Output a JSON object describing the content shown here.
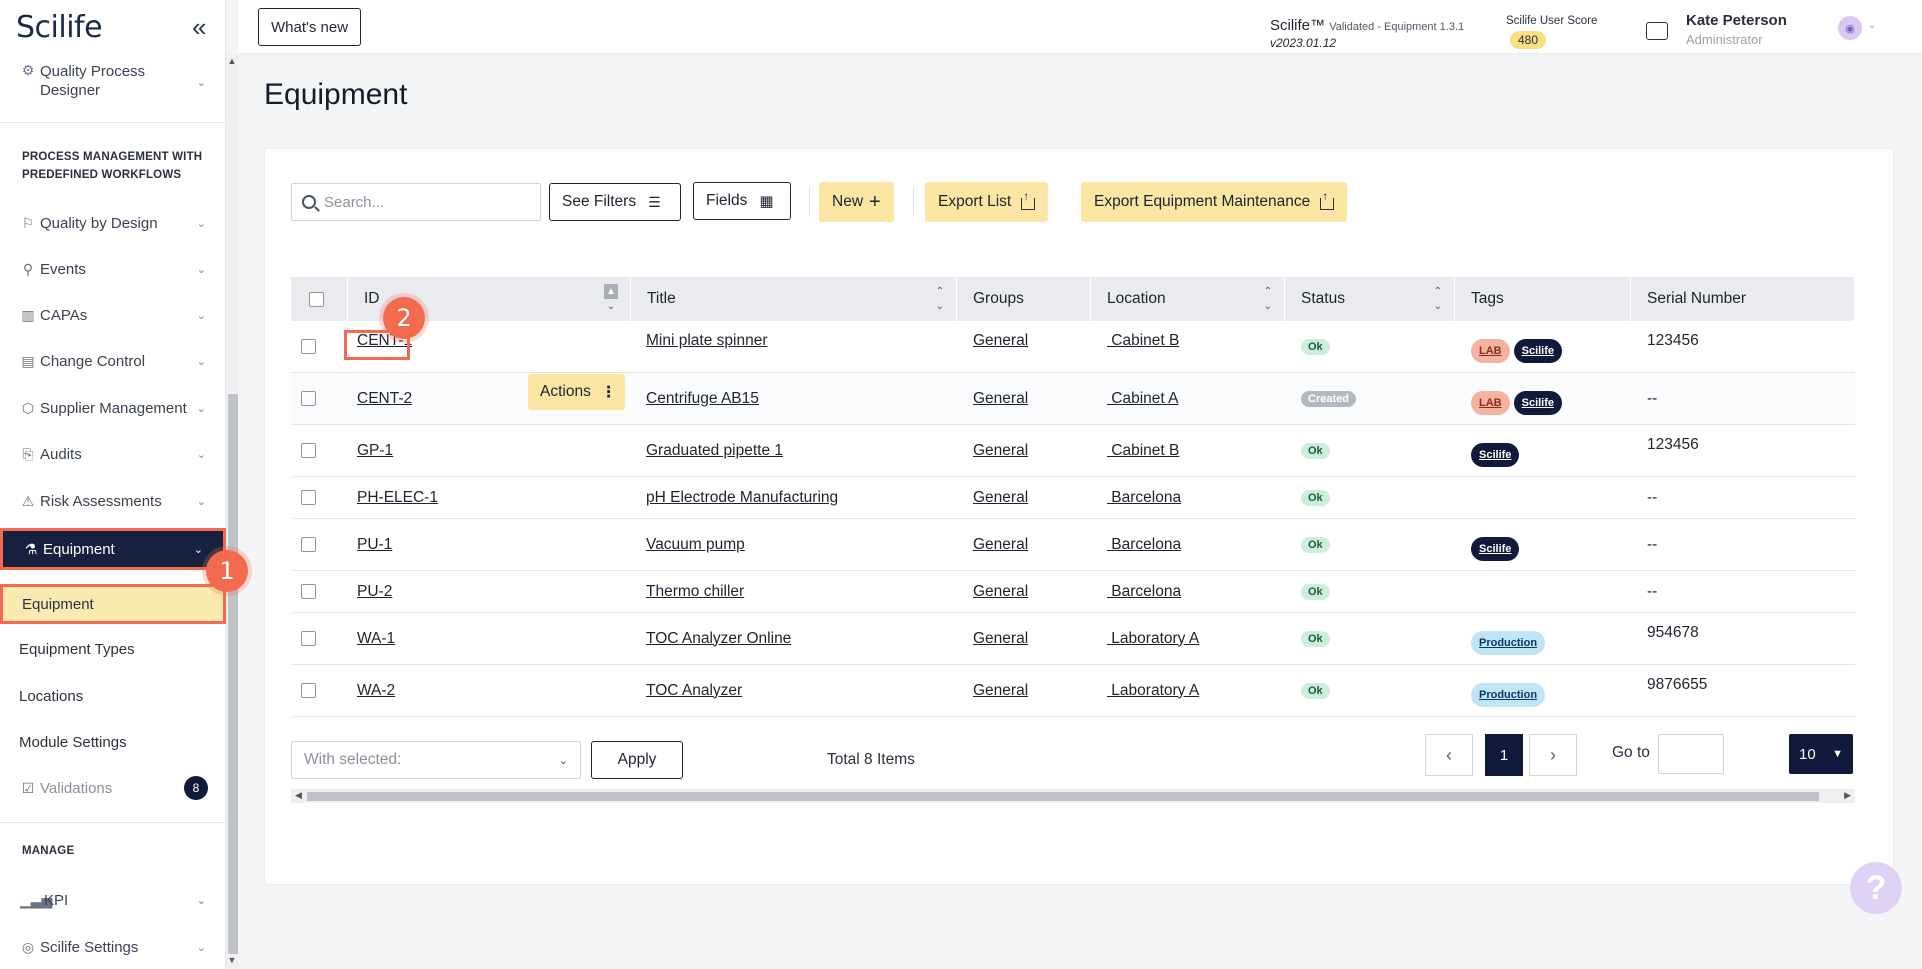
{
  "sidebar": {
    "logo": "Scilife",
    "items": [
      {
        "label": "Quality Process Designer"
      },
      {
        "label": "Quality by Design"
      },
      {
        "label": "Events"
      },
      {
        "label": "CAPAs"
      },
      {
        "label": "Change Control"
      },
      {
        "label": "Supplier Management"
      },
      {
        "label": "Audits"
      },
      {
        "label": "Risk Assessments"
      },
      {
        "label": "Equipment"
      },
      {
        "label": "Validations",
        "badge": "8"
      },
      {
        "label": "KPI"
      },
      {
        "label": "Scilife Settings"
      }
    ],
    "sections": {
      "process": "PROCESS MANAGEMENT WITH PREDEFINED WORKFLOWS",
      "manage": "MANAGE"
    },
    "equipment_sub": [
      "Equipment",
      "Equipment Types",
      "Locations",
      "Module Settings"
    ]
  },
  "steps": {
    "one": "1",
    "two": "2"
  },
  "topbar": {
    "whats_new": "What's new",
    "product": "Scilife™",
    "validated": "Validated - Equipment 1.3.1",
    "version": "v2023.01.12",
    "score_label": "Scilife User Score",
    "score": "480",
    "user_name": "Kate Peterson",
    "user_role": "Administrator"
  },
  "page": {
    "title": "Equipment"
  },
  "toolbar": {
    "search_placeholder": "Search...",
    "filters": "See Filters",
    "fields": "Fields",
    "new": "New",
    "export_list": "Export List",
    "export_maintenance": "Export Equipment Maintenance"
  },
  "table": {
    "columns": [
      "ID",
      "Title",
      "Groups",
      "Location",
      "Status",
      "Tags",
      "Serial Number"
    ],
    "actions_label": "Actions",
    "rows": [
      {
        "id": "CENT-1",
        "title": "Mini plate spinner",
        "group": "General",
        "location": " Cabinet B",
        "status": "Ok",
        "tags": [
          "LAB",
          "Scilife"
        ],
        "serial": "123456"
      },
      {
        "id": "CENT-2",
        "title": "Centrifuge AB15",
        "group": "General",
        "location": " Cabinet A",
        "status": "Created",
        "tags": [
          "LAB",
          "Scilife"
        ],
        "serial": "--"
      },
      {
        "id": "GP-1",
        "title": "Graduated pipette 1",
        "group": "General",
        "location": " Cabinet B",
        "status": "Ok",
        "tags": [
          "Scilife"
        ],
        "serial": "123456"
      },
      {
        "id": "PH-ELEC-1",
        "title": "pH Electrode Manufacturing",
        "group": "General",
        "location": " Barcelona",
        "status": "Ok",
        "tags": [],
        "serial": "--"
      },
      {
        "id": "PU-1",
        "title": "Vacuum pump",
        "group": "General",
        "location": " Barcelona",
        "status": "Ok",
        "tags": [
          "Scilife"
        ],
        "serial": "--"
      },
      {
        "id": "PU-2",
        "title": "Thermo chiller",
        "group": "General",
        "location": " Barcelona",
        "status": "Ok",
        "tags": [],
        "serial": "--"
      },
      {
        "id": "WA-1",
        "title": "TOC Analyzer Online",
        "group": "General",
        "location": " Laboratory A",
        "status": "Ok",
        "tags": [
          "Production"
        ],
        "serial": "954678"
      },
      {
        "id": "WA-2",
        "title": "TOC Analyzer",
        "group": "General",
        "location": " Laboratory A",
        "status": "Ok",
        "tags": [
          "Production"
        ],
        "serial": "9876655"
      }
    ]
  },
  "footer": {
    "with_selected": "With selected:",
    "apply": "Apply",
    "total": "Total 8 Items",
    "page": "1",
    "goto": "Go to",
    "page_size": "10"
  },
  "help": "?"
}
